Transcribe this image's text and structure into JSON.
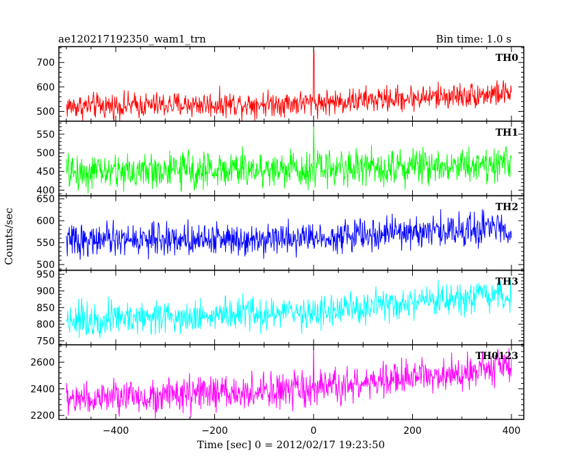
{
  "header": {
    "left_title": "ae120217192350_wam1_trn",
    "right_title": "Bin time: 1.0 s"
  },
  "chart_data": {
    "type": "line",
    "xlabel": "Time [sec] 0 = 2012/02/17 19:23:50",
    "ylabel": "Counts/sec",
    "xlim": [
      -515,
      425
    ],
    "x_ticks": [
      -400,
      -200,
      0,
      200,
      400
    ],
    "x_tick_labels": [
      "−400",
      "−200",
      "0",
      "200",
      "400"
    ],
    "bin_time_s": 1.0,
    "x_start": -500,
    "x_end": 400,
    "series": [
      {
        "name": "TH0",
        "color": "#ff0000",
        "ylim": [
          460,
          765
        ],
        "y_ticks": [
          500,
          600,
          700
        ],
        "trend": [
          [
            -500,
            520
          ],
          [
            0,
            535
          ],
          [
            400,
            575
          ]
        ],
        "spread": 26,
        "spikes": [
          [
            0,
            760
          ],
          [
            1,
            735
          ]
        ]
      },
      {
        "name": "TH1",
        "color": "#00ff00",
        "ylim": [
          385,
          585
        ],
        "y_ticks": [
          400,
          450,
          500,
          550
        ],
        "trend": [
          [
            -500,
            448
          ],
          [
            0,
            458
          ],
          [
            400,
            472
          ]
        ],
        "spread": 24,
        "spikes": [
          [
            0,
            580
          ]
        ]
      },
      {
        "name": "TH2",
        "color": "#0000ff",
        "ylim": [
          487,
          657
        ],
        "y_ticks": [
          500,
          550,
          600,
          650
        ],
        "trend": [
          [
            -500,
            555
          ],
          [
            0,
            562
          ],
          [
            400,
            585
          ]
        ],
        "spread": 18,
        "spikes": []
      },
      {
        "name": "TH3",
        "color": "#00ffff",
        "ylim": [
          738,
          962
        ],
        "y_ticks": [
          750,
          800,
          850,
          900,
          950
        ],
        "trend": [
          [
            -500,
            815
          ],
          [
            0,
            835
          ],
          [
            400,
            885
          ]
        ],
        "spread": 25,
        "spikes": []
      },
      {
        "name": "TH0123",
        "color": "#ff00ff",
        "ylim": [
          2170,
          2730
        ],
        "y_ticks": [
          2200,
          2400,
          2600
        ],
        "trend": [
          [
            -500,
            2320
          ],
          [
            0,
            2390
          ],
          [
            400,
            2580
          ]
        ],
        "spread": 65,
        "spikes": [
          [
            0,
            2730
          ]
        ]
      }
    ]
  }
}
